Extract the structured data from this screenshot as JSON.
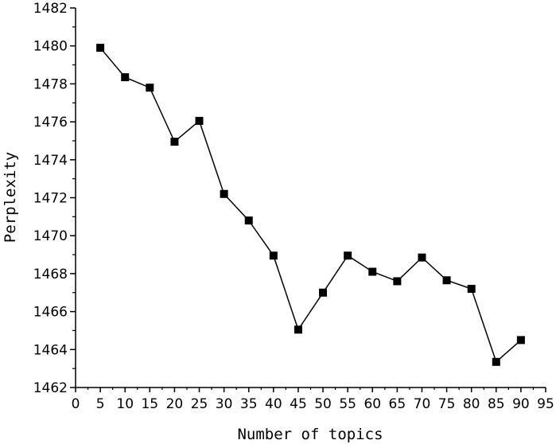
{
  "chart_data": {
    "type": "line",
    "title": "",
    "xlabel": "Number of topics",
    "ylabel": "Perplexity",
    "xlim": [
      0,
      95
    ],
    "ylim": [
      1462,
      1482
    ],
    "xticks": [
      0,
      5,
      10,
      15,
      20,
      25,
      30,
      35,
      40,
      45,
      50,
      55,
      60,
      65,
      70,
      75,
      80,
      85,
      90,
      95
    ],
    "yticks": [
      1462,
      1464,
      1466,
      1468,
      1470,
      1472,
      1474,
      1476,
      1478,
      1480,
      1482
    ],
    "grid": false,
    "legend": "none",
    "marker": "square",
    "color": "#000000",
    "series": [
      {
        "x": [
          5,
          10,
          15,
          20,
          25,
          30,
          35,
          40,
          45,
          50,
          55,
          60,
          65,
          70,
          75,
          80,
          85,
          90
        ],
        "values": [
          1479.9,
          1478.35,
          1477.8,
          1474.95,
          1476.05,
          1472.2,
          1470.8,
          1468.95,
          1465.05,
          1467.0,
          1468.95,
          1468.1,
          1467.6,
          1468.85,
          1467.65,
          1467.2,
          1463.35,
          1464.5
        ]
      }
    ]
  }
}
